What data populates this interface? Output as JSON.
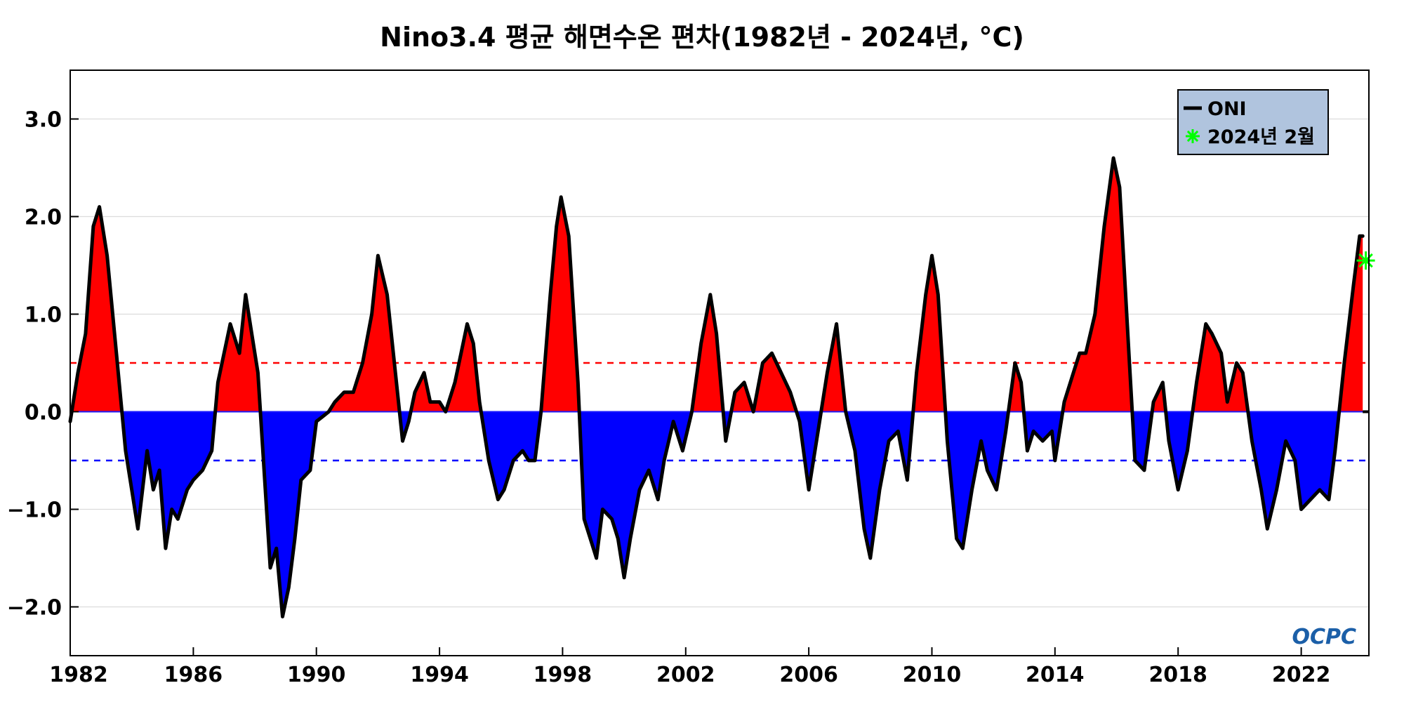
{
  "chart_data": {
    "type": "area",
    "title": "Nino3.4 평균 해면수온 편차(1982년 - 2024년, °C)",
    "xlabel": "",
    "ylabel": "",
    "xlim": [
      1982.0,
      2024.2
    ],
    "ylim": [
      -2.5,
      3.5
    ],
    "x_ticks": [
      1982,
      1986,
      1990,
      1994,
      1998,
      2002,
      2006,
      2010,
      2014,
      2018,
      2022
    ],
    "y_ticks": [
      3.0,
      2.0,
      1.0,
      0.0,
      -1.0,
      -2.0
    ],
    "y_tick_labels": [
      "3.0",
      "2.0",
      "1.0",
      "0.0",
      "−1.0",
      "−2.0"
    ],
    "grid": "horizontal",
    "reference_lines": [
      {
        "y": 0.5,
        "color": "#ff0000",
        "style": "dashed"
      },
      {
        "y": -0.5,
        "color": "#0000ff",
        "style": "dashed"
      }
    ],
    "fill_colors": {
      "positive": "#ff0000",
      "negative": "#0000ff"
    },
    "legend_position": "top-right",
    "legend": [
      {
        "label": "ONI",
        "marker": "line",
        "color": "#000000"
      },
      {
        "label": "2024년 2월",
        "marker": "star",
        "color": "#00ff00"
      }
    ],
    "series": [
      {
        "name": "ONI",
        "color": "#000000",
        "points": [
          [
            1982.0,
            -0.1
          ],
          [
            1982.25,
            0.4
          ],
          [
            1982.5,
            0.8
          ],
          [
            1982.75,
            1.9
          ],
          [
            1982.95,
            2.1
          ],
          [
            1983.2,
            1.6
          ],
          [
            1983.5,
            0.6
          ],
          [
            1983.8,
            -0.4
          ],
          [
            1984.0,
            -0.8
          ],
          [
            1984.2,
            -1.2
          ],
          [
            1984.5,
            -0.4
          ],
          [
            1984.7,
            -0.8
          ],
          [
            1984.9,
            -0.6
          ],
          [
            1985.1,
            -1.4
          ],
          [
            1985.3,
            -1.0
          ],
          [
            1985.5,
            -1.1
          ],
          [
            1985.8,
            -0.8
          ],
          [
            1986.0,
            -0.7
          ],
          [
            1986.3,
            -0.6
          ],
          [
            1986.6,
            -0.4
          ],
          [
            1986.8,
            0.3
          ],
          [
            1987.0,
            0.6
          ],
          [
            1987.2,
            0.9
          ],
          [
            1987.5,
            0.6
          ],
          [
            1987.7,
            1.2
          ],
          [
            1987.9,
            0.8
          ],
          [
            1988.1,
            0.4
          ],
          [
            1988.3,
            -0.6
          ],
          [
            1988.5,
            -1.6
          ],
          [
            1988.7,
            -1.4
          ],
          [
            1988.9,
            -2.1
          ],
          [
            1989.1,
            -1.8
          ],
          [
            1989.3,
            -1.3
          ],
          [
            1989.5,
            -0.7
          ],
          [
            1989.8,
            -0.6
          ],
          [
            1990.0,
            -0.1
          ],
          [
            1990.2,
            -0.05
          ],
          [
            1990.4,
            0.0
          ],
          [
            1990.6,
            0.1
          ],
          [
            1990.9,
            0.2
          ],
          [
            1991.2,
            0.2
          ],
          [
            1991.5,
            0.5
          ],
          [
            1991.8,
            1.0
          ],
          [
            1992.0,
            1.6
          ],
          [
            1992.3,
            1.2
          ],
          [
            1992.6,
            0.3
          ],
          [
            1992.8,
            -0.3
          ],
          [
            1993.0,
            -0.1
          ],
          [
            1993.2,
            0.2
          ],
          [
            1993.5,
            0.4
          ],
          [
            1993.7,
            0.1
          ],
          [
            1994.0,
            0.1
          ],
          [
            1994.2,
            0.0
          ],
          [
            1994.5,
            0.3
          ],
          [
            1994.7,
            0.6
          ],
          [
            1994.9,
            0.9
          ],
          [
            1995.1,
            0.7
          ],
          [
            1995.3,
            0.1
          ],
          [
            1995.6,
            -0.5
          ],
          [
            1995.9,
            -0.9
          ],
          [
            1996.1,
            -0.8
          ],
          [
            1996.4,
            -0.5
          ],
          [
            1996.7,
            -0.4
          ],
          [
            1996.9,
            -0.5
          ],
          [
            1997.1,
            -0.5
          ],
          [
            1997.3,
            0.0
          ],
          [
            1997.6,
            1.2
          ],
          [
            1997.8,
            1.9
          ],
          [
            1997.95,
            2.2
          ],
          [
            1998.2,
            1.8
          ],
          [
            1998.5,
            0.3
          ],
          [
            1998.7,
            -1.1
          ],
          [
            1998.9,
            -1.3
          ],
          [
            1999.1,
            -1.5
          ],
          [
            1999.3,
            -1.0
          ],
          [
            1999.6,
            -1.1
          ],
          [
            1999.8,
            -1.3
          ],
          [
            2000.0,
            -1.7
          ],
          [
            2000.2,
            -1.3
          ],
          [
            2000.5,
            -0.8
          ],
          [
            2000.8,
            -0.6
          ],
          [
            2001.1,
            -0.9
          ],
          [
            2001.3,
            -0.5
          ],
          [
            2001.6,
            -0.1
          ],
          [
            2001.9,
            -0.4
          ],
          [
            2002.2,
            0.0
          ],
          [
            2002.5,
            0.7
          ],
          [
            2002.8,
            1.2
          ],
          [
            2003.0,
            0.8
          ],
          [
            2003.3,
            -0.3
          ],
          [
            2003.6,
            0.2
          ],
          [
            2003.9,
            0.3
          ],
          [
            2004.2,
            0.0
          ],
          [
            2004.5,
            0.5
          ],
          [
            2004.8,
            0.6
          ],
          [
            2005.1,
            0.4
          ],
          [
            2005.4,
            0.2
          ],
          [
            2005.7,
            -0.1
          ],
          [
            2006.0,
            -0.8
          ],
          [
            2006.3,
            -0.2
          ],
          [
            2006.6,
            0.4
          ],
          [
            2006.9,
            0.9
          ],
          [
            2007.2,
            0.0
          ],
          [
            2007.5,
            -0.4
          ],
          [
            2007.8,
            -1.2
          ],
          [
            2008.0,
            -1.5
          ],
          [
            2008.3,
            -0.8
          ],
          [
            2008.6,
            -0.3
          ],
          [
            2008.9,
            -0.2
          ],
          [
            2009.2,
            -0.7
          ],
          [
            2009.5,
            0.4
          ],
          [
            2009.8,
            1.2
          ],
          [
            2010.0,
            1.6
          ],
          [
            2010.2,
            1.2
          ],
          [
            2010.5,
            -0.3
          ],
          [
            2010.8,
            -1.3
          ],
          [
            2011.0,
            -1.4
          ],
          [
            2011.3,
            -0.8
          ],
          [
            2011.6,
            -0.3
          ],
          [
            2011.8,
            -0.6
          ],
          [
            2012.1,
            -0.8
          ],
          [
            2012.4,
            -0.2
          ],
          [
            2012.7,
            0.5
          ],
          [
            2012.9,
            0.3
          ],
          [
            2013.1,
            -0.4
          ],
          [
            2013.3,
            -0.2
          ],
          [
            2013.6,
            -0.3
          ],
          [
            2013.9,
            -0.2
          ],
          [
            2014.0,
            -0.5
          ],
          [
            2014.3,
            0.1
          ],
          [
            2014.6,
            0.4
          ],
          [
            2014.8,
            0.6
          ],
          [
            2015.0,
            0.6
          ],
          [
            2015.3,
            1.0
          ],
          [
            2015.6,
            1.9
          ],
          [
            2015.9,
            2.6
          ],
          [
            2016.1,
            2.3
          ],
          [
            2016.4,
            0.6
          ],
          [
            2016.6,
            -0.5
          ],
          [
            2016.9,
            -0.6
          ],
          [
            2017.2,
            0.1
          ],
          [
            2017.5,
            0.3
          ],
          [
            2017.7,
            -0.3
          ],
          [
            2018.0,
            -0.8
          ],
          [
            2018.3,
            -0.4
          ],
          [
            2018.6,
            0.3
          ],
          [
            2018.9,
            0.9
          ],
          [
            2019.1,
            0.8
          ],
          [
            2019.4,
            0.6
          ],
          [
            2019.6,
            0.1
          ],
          [
            2019.9,
            0.5
          ],
          [
            2020.1,
            0.4
          ],
          [
            2020.4,
            -0.3
          ],
          [
            2020.7,
            -0.8
          ],
          [
            2020.9,
            -1.2
          ],
          [
            2021.2,
            -0.8
          ],
          [
            2021.5,
            -0.3
          ],
          [
            2021.8,
            -0.5
          ],
          [
            2022.0,
            -1.0
          ],
          [
            2022.3,
            -0.9
          ],
          [
            2022.6,
            -0.8
          ],
          [
            2022.9,
            -0.9
          ],
          [
            2023.1,
            -0.4
          ],
          [
            2023.4,
            0.5
          ],
          [
            2023.7,
            1.3
          ],
          [
            2023.9,
            1.8
          ],
          [
            2024.0,
            1.8
          ]
        ]
      }
    ],
    "highlight_point": {
      "label": "2024년 2월",
      "x": 2024.1,
      "y": 1.55,
      "color": "#00ff00",
      "marker": "star"
    }
  },
  "watermark": "OCPC"
}
